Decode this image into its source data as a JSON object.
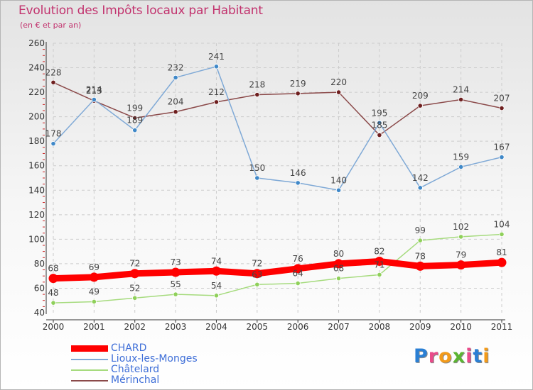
{
  "header": {
    "title": "Evolution des Impôts locaux par Habitant",
    "subtitle": "(en € et par an)"
  },
  "colors": {
    "title": "#c2336e",
    "grid": "#cccccc",
    "axis": "#333333",
    "tick_minor": "#cc2222"
  },
  "chart_data": {
    "type": "line",
    "title": "Evolution des Impôts locaux par Habitant",
    "subtitle": "(en € et par an)",
    "xlabel": "",
    "ylabel": "",
    "categories": [
      "2000",
      "2001",
      "2002",
      "2003",
      "2004",
      "2005",
      "2006",
      "2007",
      "2008",
      "2009",
      "2010",
      "2011"
    ],
    "ylim": [
      40,
      260
    ],
    "yticks": [
      40,
      60,
      80,
      100,
      120,
      140,
      160,
      180,
      200,
      220,
      240,
      260
    ],
    "grid": true,
    "legend_position": "bottom-left",
    "series": [
      {
        "name": "CHARD",
        "color": "#ff0000",
        "marker": "#ff0000",
        "weight": "thick",
        "values": [
          68,
          69,
          72,
          73,
          74,
          72,
          76,
          80,
          82,
          78,
          79,
          81
        ],
        "labels": [
          "68",
          "69",
          "72",
          "73",
          "74",
          "72",
          "76",
          "80",
          "82",
          "78",
          "79",
          "81"
        ]
      },
      {
        "name": "Lioux-les-Monges",
        "color": "#7fa9d6",
        "marker": "#3f88c8",
        "weight": "thin",
        "values": [
          178,
          214,
          189,
          232,
          241,
          150,
          146,
          140,
          195,
          142,
          159,
          167
        ],
        "labels": [
          "178",
          "214",
          "189",
          "232",
          "241",
          "150",
          "146",
          "140",
          "195",
          "142",
          "159",
          "167"
        ]
      },
      {
        "name": "Châtelard",
        "color": "#a6db7e",
        "marker": "#8fd05a",
        "weight": "thin",
        "values": [
          48,
          49,
          52,
          55,
          54,
          63,
          64,
          68,
          71,
          99,
          102,
          104
        ],
        "labels": [
          "48",
          "49",
          "52",
          "55",
          "54",
          "63",
          "64",
          "68",
          "71",
          "99",
          "102",
          "104"
        ]
      },
      {
        "name": "Mérinchal",
        "color": "#8b4a4a",
        "marker": "#6e1f1f",
        "weight": "thin",
        "values": [
          228,
          213,
          199,
          204,
          212,
          218,
          219,
          220,
          185,
          209,
          214,
          207
        ],
        "labels": [
          "228",
          "213",
          "199",
          "204",
          "212",
          "218",
          "219",
          "220",
          "185",
          "209",
          "214",
          "207"
        ]
      }
    ]
  },
  "logo": {
    "letters": [
      "P",
      "r",
      "o",
      "x",
      "i",
      "t",
      "i"
    ],
    "colors": [
      "#2a7fd4",
      "#e94b8a",
      "#f39b1a",
      "#5bb531",
      "#e94b8a",
      "#2a7fd4",
      "#f39b1a"
    ]
  }
}
